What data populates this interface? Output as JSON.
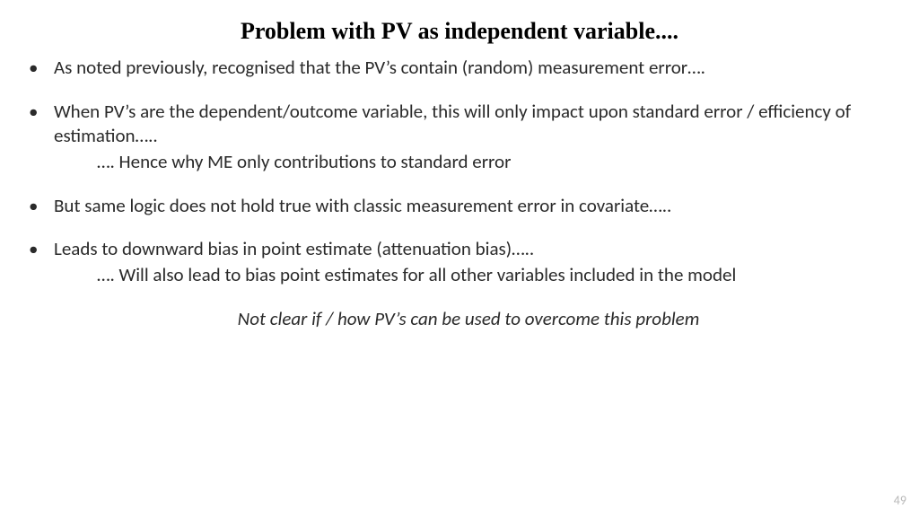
{
  "title": "Problem with PV as independent variable....",
  "bullets": {
    "b1_text": "As noted previously, recognised that the PV’s contain (random) measurement error….",
    "b2_text": "When PV’s are the dependent/outcome variable, this will only impact upon standard error / efficiency of estimation…..",
    "b2_sub": "…. Hence why ME only contributions to standard error",
    "b3_text": "But same logic does not hold true with classic measurement error in covariate…..",
    "b4_text": "Leads to downward bias in point estimate (attenuation bias)…..",
    "b4_sub": "…. Will also lead to bias point estimates for all other variables included in the model"
  },
  "note": "Not clear if / how PV’s can be used to overcome this problem",
  "page_number": "49"
}
